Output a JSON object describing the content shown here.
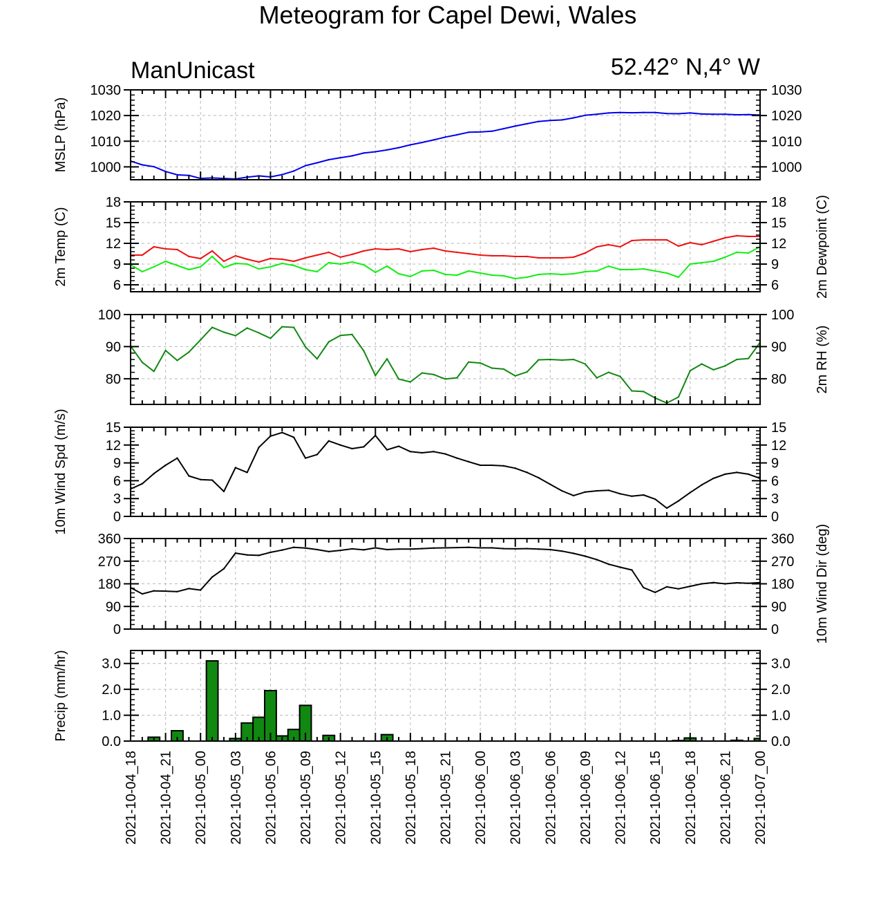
{
  "title": "Meteogram for Capel Dewi, Wales",
  "header": {
    "model": "ManUnicast",
    "location": "52.42° N,4° W"
  },
  "colors": {
    "mslp": "#0000ee",
    "temp": "#ee1111",
    "dewpoint": "#11ee11",
    "rh": "#118811",
    "wind": "#000000",
    "precip_fill": "#118811",
    "grid": "#b8b8b8"
  },
  "chart_data": [
    {
      "type": "line",
      "ylabel_left": "MSLP (hPa)",
      "ylabel_right": "",
      "ylim": [
        995,
        1030
      ],
      "yticks": [
        1000,
        1010,
        1020,
        1030
      ],
      "tick_format": "int",
      "grid": true,
      "x_hours": [
        0,
        1,
        2,
        3,
        4,
        5,
        6,
        7,
        8,
        9,
        10,
        11,
        12,
        13,
        14,
        15,
        16,
        17,
        18,
        19,
        20,
        21,
        22,
        23,
        24,
        25,
        26,
        27,
        28,
        29,
        30,
        31,
        32,
        33,
        34,
        35,
        36,
        37,
        38,
        39,
        40,
        41,
        42,
        43,
        44,
        45,
        46,
        47,
        48,
        49,
        50,
        51,
        52,
        53,
        54
      ],
      "series": [
        {
          "name": "",
          "color_key": "mslp",
          "values": [
            1002.3,
            1000.8,
            1000.1,
            998.2,
            996.9,
            996.7,
            995.5,
            995.7,
            995.5,
            995.3,
            996.0,
            996.5,
            996.1,
            997.0,
            998.4,
            1000.5,
            1001.6,
            1002.8,
            1003.6,
            1004.3,
            1005.4,
            1005.9,
            1006.6,
            1007.5,
            1008.6,
            1009.5,
            1010.5,
            1011.6,
            1012.5,
            1013.5,
            1013.6,
            1013.9,
            1014.9,
            1015.9,
            1016.8,
            1017.7,
            1018.1,
            1018.3,
            1019.1,
            1020.1,
            1020.5,
            1021.0,
            1021.2,
            1021.1,
            1021.2,
            1021.2,
            1020.8,
            1020.7,
            1021.0,
            1020.6,
            1020.5,
            1020.5,
            1020.3,
            1020.4,
            1020.2
          ]
        }
      ]
    },
    {
      "type": "line",
      "ylabel_left": "2m Temp (C)",
      "ylabel_right": "2m Dewpoint (C)",
      "ylim": [
        5,
        18
      ],
      "yticks": [
        6,
        9,
        12,
        15,
        18
      ],
      "tick_format": "int",
      "grid": true,
      "x_hours": [
        0,
        1,
        2,
        3,
        4,
        5,
        6,
        7,
        8,
        9,
        10,
        11,
        12,
        13,
        14,
        15,
        16,
        17,
        18,
        19,
        20,
        21,
        22,
        23,
        24,
        25,
        26,
        27,
        28,
        29,
        30,
        31,
        32,
        33,
        34,
        35,
        36,
        37,
        38,
        39,
        40,
        41,
        42,
        43,
        44,
        45,
        46,
        47,
        48,
        49,
        50,
        51,
        52,
        53,
        54
      ],
      "series": [
        {
          "name": "",
          "color_key": "temp",
          "values": [
            10.3,
            10.3,
            11.5,
            11.2,
            11.1,
            10.1,
            9.8,
            10.9,
            9.4,
            10.2,
            9.7,
            9.3,
            9.8,
            9.7,
            9.4,
            9.9,
            10.3,
            10.7,
            10.0,
            10.4,
            10.9,
            11.2,
            11.1,
            11.2,
            10.8,
            11.1,
            11.3,
            10.9,
            10.7,
            10.5,
            10.3,
            10.2,
            10.2,
            10.1,
            10.1,
            9.9,
            9.9,
            9.9,
            10.0,
            10.6,
            11.5,
            11.8,
            11.5,
            12.4,
            12.5,
            12.5,
            12.5,
            11.6,
            12.1,
            11.8,
            12.3,
            12.8,
            13.1,
            13.0,
            13.0
          ]
        },
        {
          "name": "",
          "color_key": "dewpoint",
          "values": [
            8.9,
            7.9,
            8.6,
            9.4,
            8.8,
            8.2,
            8.6,
            10.1,
            8.5,
            9.1,
            9.0,
            8.3,
            8.6,
            9.1,
            8.8,
            8.2,
            7.9,
            9.2,
            9.0,
            9.3,
            8.9,
            7.8,
            8.7,
            7.6,
            7.2,
            8.0,
            8.1,
            7.5,
            7.4,
            8.0,
            7.7,
            7.4,
            7.3,
            6.9,
            7.1,
            7.5,
            7.6,
            7.5,
            7.6,
            7.9,
            8.0,
            8.7,
            8.2,
            8.2,
            8.3,
            8.0,
            7.7,
            7.1,
            9.0,
            9.2,
            9.4,
            10.0,
            10.7,
            10.6,
            11.5
          ]
        }
      ]
    },
    {
      "type": "line",
      "ylabel_left": "",
      "ylabel_right": "2m RH (%)",
      "ylim": [
        72,
        100
      ],
      "yticks": [
        80,
        90,
        100
      ],
      "tick_format": "int",
      "grid": true,
      "x_hours": [
        0,
        1,
        2,
        3,
        4,
        5,
        6,
        7,
        8,
        9,
        10,
        11,
        12,
        13,
        14,
        15,
        16,
        17,
        18,
        19,
        20,
        21,
        22,
        23,
        24,
        25,
        26,
        27,
        28,
        29,
        30,
        31,
        32,
        33,
        34,
        35,
        36,
        37,
        38,
        39,
        40,
        41,
        42,
        43,
        44,
        45,
        46,
        47,
        48,
        49,
        50,
        51,
        52,
        53,
        54
      ],
      "series": [
        {
          "name": "",
          "color_key": "rh",
          "values": [
            90.2,
            85.1,
            82.3,
            88.8,
            85.7,
            88.3,
            92.1,
            96.0,
            94.5,
            93.4,
            95.8,
            94.3,
            92.6,
            96.2,
            96.0,
            89.9,
            86.2,
            91.5,
            93.5,
            93.8,
            88.7,
            81.0,
            86.2,
            79.9,
            79.0,
            81.8,
            81.3,
            79.9,
            80.3,
            85.2,
            84.9,
            83.3,
            83.0,
            80.9,
            82.1,
            85.9,
            86.0,
            85.8,
            86.0,
            84.6,
            80.3,
            82.0,
            80.7,
            76.2,
            76.0,
            74.0,
            72.4,
            74.3,
            82.5,
            84.6,
            82.8,
            84.0,
            86.0,
            86.3,
            91.3
          ]
        }
      ]
    },
    {
      "type": "line",
      "ylabel_left": "10m Wind Spd (m/s)",
      "ylabel_right": "",
      "ylim": [
        0,
        15
      ],
      "yticks": [
        0,
        3,
        6,
        9,
        12,
        15
      ],
      "tick_format": "int",
      "grid": false,
      "x_hours": [
        0,
        1,
        2,
        3,
        4,
        5,
        6,
        7,
        8,
        9,
        10,
        11,
        12,
        13,
        14,
        15,
        16,
        17,
        18,
        19,
        20,
        21,
        22,
        23,
        24,
        25,
        26,
        27,
        28,
        29,
        30,
        31,
        32,
        33,
        34,
        35,
        36,
        37,
        38,
        39,
        40,
        41,
        42,
        43,
        44,
        45,
        46,
        47,
        48,
        49,
        50,
        51,
        52,
        53,
        54
      ],
      "series": [
        {
          "name": "",
          "color_key": "wind",
          "values": [
            4.6,
            5.5,
            7.2,
            8.6,
            9.8,
            6.8,
            6.2,
            6.1,
            4.2,
            8.2,
            7.4,
            11.6,
            13.5,
            14.1,
            13.3,
            9.8,
            10.4,
            12.7,
            12.0,
            11.4,
            11.7,
            13.6,
            11.2,
            11.8,
            10.9,
            10.7,
            10.9,
            10.5,
            9.8,
            9.2,
            8.6,
            8.6,
            8.5,
            8.1,
            7.4,
            6.5,
            5.4,
            4.3,
            3.5,
            4.1,
            4.3,
            4.4,
            3.8,
            3.4,
            3.6,
            2.9,
            1.4,
            2.6,
            4.0,
            5.3,
            6.4,
            7.1,
            7.4,
            7.1,
            6.4
          ]
        }
      ]
    },
    {
      "type": "line",
      "ylabel_left": "",
      "ylabel_right": "10m Wind Dir (deg)",
      "ylim": [
        0,
        360
      ],
      "yticks": [
        0,
        90,
        180,
        270,
        360
      ],
      "tick_format": "int",
      "grid": true,
      "x_hours": [
        0,
        1,
        2,
        3,
        4,
        5,
        6,
        7,
        8,
        9,
        10,
        11,
        12,
        13,
        14,
        15,
        16,
        17,
        18,
        19,
        20,
        21,
        22,
        23,
        24,
        25,
        26,
        27,
        28,
        29,
        30,
        31,
        32,
        33,
        34,
        35,
        36,
        37,
        38,
        39,
        40,
        41,
        42,
        43,
        44,
        45,
        46,
        47,
        48,
        49,
        50,
        51,
        52,
        53,
        54
      ],
      "series": [
        {
          "name": "",
          "color_key": "wind",
          "values": [
            165,
            140,
            152,
            151,
            149,
            161,
            155,
            207,
            240,
            302,
            295,
            293,
            305,
            314,
            325,
            322,
            316,
            308,
            313,
            319,
            315,
            323,
            316,
            318,
            318,
            320,
            322,
            323,
            324,
            325,
            323,
            323,
            320,
            319,
            320,
            318,
            316,
            310,
            301,
            290,
            276,
            258,
            246,
            235,
            165,
            146,
            168,
            160,
            170,
            180,
            185,
            180,
            184,
            182,
            185
          ]
        }
      ]
    },
    {
      "type": "bar",
      "ylabel_left": "Precip (mm/hr)",
      "ylabel_right": "",
      "ylim": [
        0,
        3.5
      ],
      "yticks": [
        0,
        1,
        2,
        3
      ],
      "tick_format": "one_decimal",
      "grid": true,
      "x_hours": [
        0,
        1,
        2,
        3,
        4,
        5,
        6,
        7,
        8,
        9,
        10,
        11,
        12,
        13,
        14,
        15,
        16,
        17,
        18,
        19,
        20,
        21,
        22,
        23,
        24,
        25,
        26,
        27,
        28,
        29,
        30,
        31,
        32,
        33,
        34,
        35,
        36,
        37,
        38,
        39,
        40,
        41,
        42,
        43,
        44,
        45,
        46,
        47,
        48,
        49,
        50,
        51,
        52,
        53,
        54
      ],
      "series": [
        {
          "name": "",
          "color_key": "precip_fill",
          "values": [
            0,
            0,
            0.15,
            0,
            0.4,
            0,
            0,
            3.1,
            0,
            0.1,
            0.7,
            0.92,
            1.95,
            0.2,
            0.45,
            1.38,
            0,
            0.22,
            0,
            0,
            0,
            0,
            0.25,
            0,
            0,
            0,
            0,
            0,
            0,
            0,
            0,
            0,
            0,
            0,
            0,
            0,
            0,
            0,
            0,
            0,
            0,
            0,
            0,
            0,
            0,
            0,
            0,
            0.02,
            0.12,
            0,
            0,
            0,
            0.03,
            0,
            0.1
          ]
        }
      ]
    }
  ],
  "x_axis": {
    "major_ticks_every_hours": 3,
    "labels": [
      "2021-10-04_18",
      "2021-10-04_21",
      "2021-10-05_00",
      "2021-10-05_03",
      "2021-10-05_06",
      "2021-10-05_09",
      "2021-10-05_12",
      "2021-10-05_15",
      "2021-10-05_18",
      "2021-10-05_21",
      "2021-10-06_00",
      "2021-10-06_03",
      "2021-10-06_06",
      "2021-10-06_09",
      "2021-10-06_12",
      "2021-10-06_15",
      "2021-10-06_18",
      "2021-10-06_21",
      "2021-10-07_00"
    ]
  }
}
